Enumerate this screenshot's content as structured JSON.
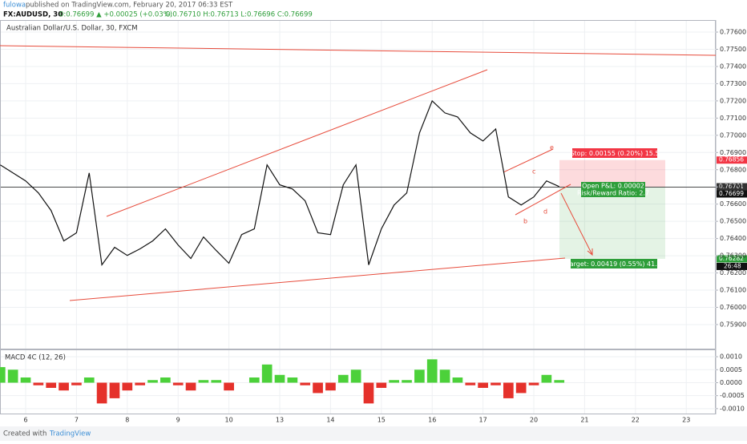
{
  "header": {
    "author": "fulowa",
    "published": "published on TradingView.com, February 20, 2017 06:33 EST",
    "symbol": "FX:AUDUSD, 30",
    "quote": "0:0.76699 ▲ +0.00025 (+0.03%)",
    "ohlc": "O:0.76710 H:0.76713 L:0.76696 C:0.76699"
  },
  "chart_data": [
    {
      "type": "line",
      "title": "Australian Dollar/U.S. Dollar, 30, FXCM",
      "color": "#111111",
      "x": [
        -2,
        -1,
        0,
        1,
        2,
        3,
        4,
        5,
        6,
        7,
        8,
        9,
        10,
        11,
        12,
        13,
        14,
        15,
        16,
        17,
        18,
        19,
        20,
        21,
        22,
        23,
        24,
        25,
        26,
        27,
        28,
        29,
        30,
        31,
        32,
        33,
        34,
        35,
        36,
        37,
        38,
        39,
        40,
        41,
        42
      ],
      "values": [
        0.76828,
        0.76781,
        0.76735,
        0.76665,
        0.76563,
        0.76386,
        0.76433,
        0.76781,
        0.76247,
        0.76349,
        0.76302,
        0.7634,
        0.76386,
        0.76456,
        0.76363,
        0.76284,
        0.76409,
        0.7633,
        0.76256,
        0.76423,
        0.76456,
        0.76828,
        0.76712,
        0.76688,
        0.76619,
        0.76433,
        0.76423,
        0.76712,
        0.76828,
        0.76247,
        0.76456,
        0.76595,
        0.76665,
        0.77014,
        0.772,
        0.7713,
        0.77107,
        0.77014,
        0.76967,
        0.77037,
        0.76642,
        0.76595,
        0.76642,
        0.76735,
        0.76702
      ],
      "xlim": [
        -2.02,
        54.32
      ],
      "xticks": [
        {
          "value": 0,
          "label": "6"
        },
        {
          "value": 4,
          "label": "7"
        },
        {
          "value": 8,
          "label": "8"
        },
        {
          "value": 12,
          "label": "9"
        },
        {
          "value": 16,
          "label": "10"
        },
        {
          "value": 20,
          "label": "13"
        },
        {
          "value": 24,
          "label": "14"
        },
        {
          "value": 28,
          "label": "15"
        },
        {
          "value": 32,
          "label": "16"
        },
        {
          "value": 36,
          "label": "17"
        },
        {
          "value": 40,
          "label": "20"
        },
        {
          "value": 44,
          "label": "21"
        },
        {
          "value": 48,
          "label": "22"
        },
        {
          "value": 52,
          "label": "23"
        }
      ],
      "ylim": [
        0.7576,
        0.7767
      ],
      "yticks": [
        {
          "value": 0.759,
          "label": "0.75900"
        },
        {
          "value": 0.76,
          "label": "0.76000"
        },
        {
          "value": 0.761,
          "label": "0.76100"
        },
        {
          "value": 0.762,
          "label": "0.76200"
        },
        {
          "value": 0.763,
          "label": "0.76300"
        },
        {
          "value": 0.764,
          "label": "0.76400"
        },
        {
          "value": 0.765,
          "label": "0.76500"
        },
        {
          "value": 0.766,
          "label": "0.76600"
        },
        {
          "value": 0.767,
          "label": "0.76700"
        },
        {
          "value": 0.768,
          "label": "0.76800"
        },
        {
          "value": 0.769,
          "label": "0.76900"
        },
        {
          "value": 0.77,
          "label": "0.77000"
        },
        {
          "value": 0.771,
          "label": "0.77100"
        },
        {
          "value": 0.772,
          "label": "0.77200"
        },
        {
          "value": 0.773,
          "label": "0.77300"
        },
        {
          "value": 0.774,
          "label": "0.77400"
        },
        {
          "value": 0.775,
          "label": "0.77500"
        },
        {
          "value": 0.776,
          "label": "0.77600"
        }
      ],
      "grid": true,
      "price_tags": [
        {
          "value": 0.76856,
          "color": "#f23645"
        },
        {
          "value": 0.76701,
          "color": "#333333"
        },
        {
          "value": 0.76699,
          "color": "#111111"
        },
        {
          "value": 0.76282,
          "color": "#2e9e3a"
        }
      ],
      "countdown": "26:48",
      "annotations": {
        "stop": "Stop: 0.00155 (0.20%) 15.5",
        "pnl": "Open P&L: 0.00002",
        "rr": "Risk/Reward Ratio: 2.7",
        "target": "Target: 0.00419 (0.55%) 41.9",
        "points": [
          "b",
          "c",
          "d",
          "e"
        ]
      }
    },
    {
      "type": "bar",
      "title": "MACD 4C (12, 26)",
      "positive_color": "#4cd13a",
      "negative_color": "#e5312b",
      "x": [
        -2,
        -1,
        0,
        1,
        2,
        3,
        4,
        5,
        6,
        7,
        8,
        9,
        10,
        11,
        12,
        13,
        14,
        15,
        16,
        17,
        18,
        19,
        20,
        21,
        22,
        23,
        24,
        25,
        26,
        27,
        28,
        29,
        30,
        31,
        32,
        33,
        34,
        35,
        36,
        37,
        38,
        39,
        40,
        41,
        42
      ],
      "values": [
        0.0006,
        0.0005,
        0.0002,
        -0.0001,
        -0.0002,
        -0.0003,
        -0.0001,
        0.0002,
        -0.0008,
        -0.0006,
        -0.0003,
        -0.0001,
        0.0001,
        0.0002,
        -0.0001,
        -0.0003,
        0.0001,
        0.0001,
        -0.0003,
        0,
        0.0002,
        0.0007,
        0.0003,
        0.0002,
        -0.0001,
        -0.0004,
        -0.0003,
        0.0003,
        0.0005,
        -0.0008,
        -0.0002,
        0.0001,
        0.0001,
        0.0005,
        0.0009,
        0.0005,
        0.0002,
        -0.0001,
        -0.0002,
        -0.0001,
        -0.0006,
        -0.0004,
        -0.0001,
        0.0003,
        0.0001
      ],
      "ylim": [
        -0.00122,
        0.00125
      ],
      "yticks": [
        {
          "value": -0.001,
          "label": "-0.0010"
        },
        {
          "value": -0.0005,
          "label": "-0.0005"
        },
        {
          "value": 0,
          "label": "0.0000"
        },
        {
          "value": 0.0005,
          "label": "0.0005"
        },
        {
          "value": 0.001,
          "label": "0.0010"
        }
      ]
    }
  ],
  "footer": {
    "created": "Created with",
    "brand": "TradingView"
  }
}
